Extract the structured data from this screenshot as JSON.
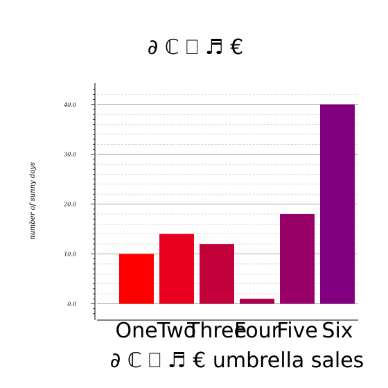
{
  "chart_data": {
    "type": "bar",
    "title": "∂ ℂ ⎕ ♬ €",
    "xlabel": "∂ ℂ ⎕ ♬ € umbrella sales",
    "ylabel": "number of sunny days",
    "categories": [
      "One",
      "Two",
      "Three",
      "Four",
      "Five",
      "Six"
    ],
    "values": [
      10,
      14,
      12,
      1,
      18,
      40
    ],
    "colors": [
      "#fe0000",
      "#e9001e",
      "#c2003a",
      "#a8004e",
      "#980068",
      "#820080"
    ],
    "ylim": [
      -3,
      44
    ],
    "yticks": [
      0,
      10,
      20,
      30,
      40
    ],
    "ytick_labels": [
      "0.0",
      "10.0",
      "20.0",
      "30.0",
      "40.0"
    ],
    "grid": true
  }
}
